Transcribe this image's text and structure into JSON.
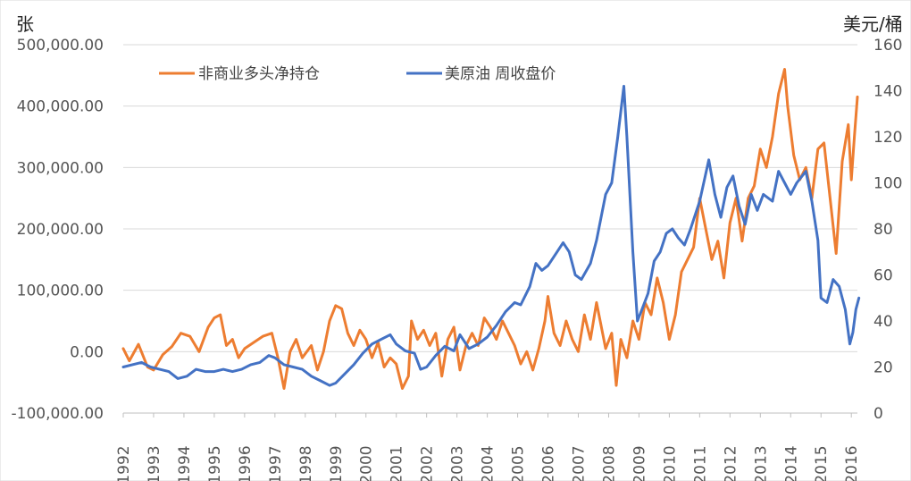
{
  "chart_data": {
    "type": "line",
    "left_unit": "张",
    "right_unit": "美元/桶",
    "y_left": {
      "min": -100000,
      "max": 500000,
      "ticks": [
        "-100,000.00",
        "0.00",
        "100,000.00",
        "200,000.00",
        "300,000.00",
        "400,000.00",
        "500,000.00"
      ]
    },
    "y_right": {
      "min": 0,
      "max": 160,
      "ticks": [
        "0",
        "20",
        "40",
        "60",
        "80",
        "100",
        "120",
        "140",
        "160"
      ]
    },
    "x": {
      "min": 1992,
      "max": 2016.2,
      "ticks": [
        "1992",
        "1993",
        "1994",
        "1995",
        "1996",
        "1997",
        "1998",
        "1999",
        "2000",
        "2001",
        "2002",
        "2003",
        "2004",
        "2005",
        "2006",
        "2007",
        "2008",
        "2009",
        "2010",
        "2011",
        "2012",
        "2013",
        "2014",
        "2015",
        "2016"
      ]
    },
    "grid": true,
    "legend_position": "top-left",
    "series": [
      {
        "name": "非商业多头净持仓",
        "axis": "left",
        "color": "#ED7D31",
        "points": [
          [
            1992.0,
            5000
          ],
          [
            1992.2,
            -15000
          ],
          [
            1992.5,
            12000
          ],
          [
            1992.8,
            -25000
          ],
          [
            1993.0,
            -30000
          ],
          [
            1993.3,
            -5000
          ],
          [
            1993.6,
            8000
          ],
          [
            1993.9,
            30000
          ],
          [
            1994.2,
            25000
          ],
          [
            1994.5,
            0
          ],
          [
            1994.8,
            40000
          ],
          [
            1995.0,
            55000
          ],
          [
            1995.2,
            60000
          ],
          [
            1995.4,
            10000
          ],
          [
            1995.6,
            20000
          ],
          [
            1995.8,
            -10000
          ],
          [
            1996.0,
            5000
          ],
          [
            1996.3,
            15000
          ],
          [
            1996.6,
            25000
          ],
          [
            1996.9,
            30000
          ],
          [
            1997.1,
            -10000
          ],
          [
            1997.3,
            -60000
          ],
          [
            1997.5,
            0
          ],
          [
            1997.7,
            20000
          ],
          [
            1997.9,
            -10000
          ],
          [
            1998.2,
            10000
          ],
          [
            1998.4,
            -30000
          ],
          [
            1998.6,
            0
          ],
          [
            1998.8,
            50000
          ],
          [
            1999.0,
            75000
          ],
          [
            1999.2,
            70000
          ],
          [
            1999.4,
            30000
          ],
          [
            1999.6,
            10000
          ],
          [
            1999.8,
            35000
          ],
          [
            2000.0,
            20000
          ],
          [
            2000.2,
            -10000
          ],
          [
            2000.4,
            15000
          ],
          [
            2000.6,
            -25000
          ],
          [
            2000.8,
            -10000
          ],
          [
            2001.0,
            -20000
          ],
          [
            2001.2,
            -60000
          ],
          [
            2001.4,
            -40000
          ],
          [
            2001.5,
            50000
          ],
          [
            2001.7,
            20000
          ],
          [
            2001.9,
            35000
          ],
          [
            2002.1,
            10000
          ],
          [
            2002.3,
            30000
          ],
          [
            2002.5,
            -40000
          ],
          [
            2002.7,
            20000
          ],
          [
            2002.9,
            40000
          ],
          [
            2003.1,
            -30000
          ],
          [
            2003.3,
            10000
          ],
          [
            2003.5,
            30000
          ],
          [
            2003.7,
            10000
          ],
          [
            2003.9,
            55000
          ],
          [
            2004.1,
            40000
          ],
          [
            2004.3,
            20000
          ],
          [
            2004.5,
            50000
          ],
          [
            2004.7,
            30000
          ],
          [
            2004.9,
            10000
          ],
          [
            2005.1,
            -20000
          ],
          [
            2005.3,
            0
          ],
          [
            2005.5,
            -30000
          ],
          [
            2005.7,
            5000
          ],
          [
            2005.9,
            50000
          ],
          [
            2006.0,
            90000
          ],
          [
            2006.2,
            30000
          ],
          [
            2006.4,
            10000
          ],
          [
            2006.6,
            50000
          ],
          [
            2006.8,
            20000
          ],
          [
            2007.0,
            0
          ],
          [
            2007.2,
            60000
          ],
          [
            2007.4,
            20000
          ],
          [
            2007.6,
            80000
          ],
          [
            2007.8,
            30000
          ],
          [
            2007.9,
            5000
          ],
          [
            2008.1,
            30000
          ],
          [
            2008.25,
            -55000
          ],
          [
            2008.4,
            20000
          ],
          [
            2008.6,
            -10000
          ],
          [
            2008.8,
            50000
          ],
          [
            2009.0,
            20000
          ],
          [
            2009.2,
            80000
          ],
          [
            2009.4,
            60000
          ],
          [
            2009.6,
            120000
          ],
          [
            2009.8,
            80000
          ],
          [
            2010.0,
            20000
          ],
          [
            2010.2,
            60000
          ],
          [
            2010.4,
            130000
          ],
          [
            2010.6,
            150000
          ],
          [
            2010.8,
            170000
          ],
          [
            2011.0,
            250000
          ],
          [
            2011.2,
            200000
          ],
          [
            2011.4,
            150000
          ],
          [
            2011.6,
            180000
          ],
          [
            2011.8,
            120000
          ],
          [
            2012.0,
            210000
          ],
          [
            2012.2,
            250000
          ],
          [
            2012.4,
            180000
          ],
          [
            2012.6,
            250000
          ],
          [
            2012.8,
            270000
          ],
          [
            2013.0,
            330000
          ],
          [
            2013.2,
            300000
          ],
          [
            2013.4,
            350000
          ],
          [
            2013.6,
            420000
          ],
          [
            2013.8,
            460000
          ],
          [
            2013.9,
            400000
          ],
          [
            2014.1,
            320000
          ],
          [
            2014.3,
            280000
          ],
          [
            2014.5,
            300000
          ],
          [
            2014.7,
            250000
          ],
          [
            2014.9,
            330000
          ],
          [
            2015.1,
            340000
          ],
          [
            2015.3,
            250000
          ],
          [
            2015.5,
            160000
          ],
          [
            2015.7,
            310000
          ],
          [
            2015.9,
            370000
          ],
          [
            2016.0,
            280000
          ],
          [
            2016.1,
            350000
          ],
          [
            2016.2,
            415000
          ]
        ]
      },
      {
        "name": "美原油 周收盘价",
        "axis": "right",
        "color": "#4472C4",
        "points": [
          [
            1992.0,
            20
          ],
          [
            1992.3,
            21
          ],
          [
            1992.6,
            22
          ],
          [
            1992.9,
            20
          ],
          [
            1993.2,
            19
          ],
          [
            1993.5,
            18
          ],
          [
            1993.8,
            15
          ],
          [
            1994.1,
            16
          ],
          [
            1994.4,
            19
          ],
          [
            1994.7,
            18
          ],
          [
            1995.0,
            18
          ],
          [
            1995.3,
            19
          ],
          [
            1995.6,
            18
          ],
          [
            1995.9,
            19
          ],
          [
            1996.2,
            21
          ],
          [
            1996.5,
            22
          ],
          [
            1996.8,
            25
          ],
          [
            1997.0,
            24
          ],
          [
            1997.3,
            21
          ],
          [
            1997.6,
            20
          ],
          [
            1997.9,
            19
          ],
          [
            1998.2,
            16
          ],
          [
            1998.5,
            14
          ],
          [
            1998.8,
            12
          ],
          [
            1999.0,
            13
          ],
          [
            1999.3,
            17
          ],
          [
            1999.6,
            21
          ],
          [
            1999.9,
            26
          ],
          [
            2000.2,
            30
          ],
          [
            2000.5,
            32
          ],
          [
            2000.8,
            34
          ],
          [
            2001.0,
            30
          ],
          [
            2001.3,
            27
          ],
          [
            2001.6,
            26
          ],
          [
            2001.8,
            19
          ],
          [
            2002.0,
            20
          ],
          [
            2002.3,
            25
          ],
          [
            2002.6,
            29
          ],
          [
            2002.9,
            27
          ],
          [
            2003.1,
            34
          ],
          [
            2003.4,
            28
          ],
          [
            2003.7,
            30
          ],
          [
            2004.0,
            33
          ],
          [
            2004.3,
            38
          ],
          [
            2004.6,
            44
          ],
          [
            2004.9,
            48
          ],
          [
            2005.1,
            47
          ],
          [
            2005.4,
            55
          ],
          [
            2005.6,
            65
          ],
          [
            2005.8,
            62
          ],
          [
            2006.0,
            64
          ],
          [
            2006.3,
            70
          ],
          [
            2006.5,
            74
          ],
          [
            2006.7,
            70
          ],
          [
            2006.9,
            60
          ],
          [
            2007.1,
            58
          ],
          [
            2007.4,
            65
          ],
          [
            2007.6,
            75
          ],
          [
            2007.9,
            95
          ],
          [
            2008.1,
            100
          ],
          [
            2008.3,
            120
          ],
          [
            2008.5,
            142
          ],
          [
            2008.6,
            120
          ],
          [
            2008.8,
            70
          ],
          [
            2008.95,
            40
          ],
          [
            2009.1,
            45
          ],
          [
            2009.3,
            52
          ],
          [
            2009.5,
            66
          ],
          [
            2009.7,
            70
          ],
          [
            2009.9,
            78
          ],
          [
            2010.1,
            80
          ],
          [
            2010.3,
            76
          ],
          [
            2010.5,
            73
          ],
          [
            2010.7,
            80
          ],
          [
            2010.9,
            88
          ],
          [
            2011.0,
            92
          ],
          [
            2011.3,
            110
          ],
          [
            2011.5,
            95
          ],
          [
            2011.7,
            85
          ],
          [
            2011.9,
            98
          ],
          [
            2012.1,
            103
          ],
          [
            2012.3,
            90
          ],
          [
            2012.5,
            82
          ],
          [
            2012.7,
            95
          ],
          [
            2012.9,
            88
          ],
          [
            2013.1,
            95
          ],
          [
            2013.4,
            92
          ],
          [
            2013.6,
            105
          ],
          [
            2013.8,
            100
          ],
          [
            2014.0,
            95
          ],
          [
            2014.2,
            100
          ],
          [
            2014.5,
            105
          ],
          [
            2014.7,
            92
          ],
          [
            2014.9,
            75
          ],
          [
            2015.0,
            50
          ],
          [
            2015.2,
            48
          ],
          [
            2015.4,
            58
          ],
          [
            2015.6,
            55
          ],
          [
            2015.8,
            45
          ],
          [
            2015.95,
            30
          ],
          [
            2016.05,
            35
          ],
          [
            2016.15,
            45
          ],
          [
            2016.25,
            50
          ]
        ]
      }
    ]
  }
}
